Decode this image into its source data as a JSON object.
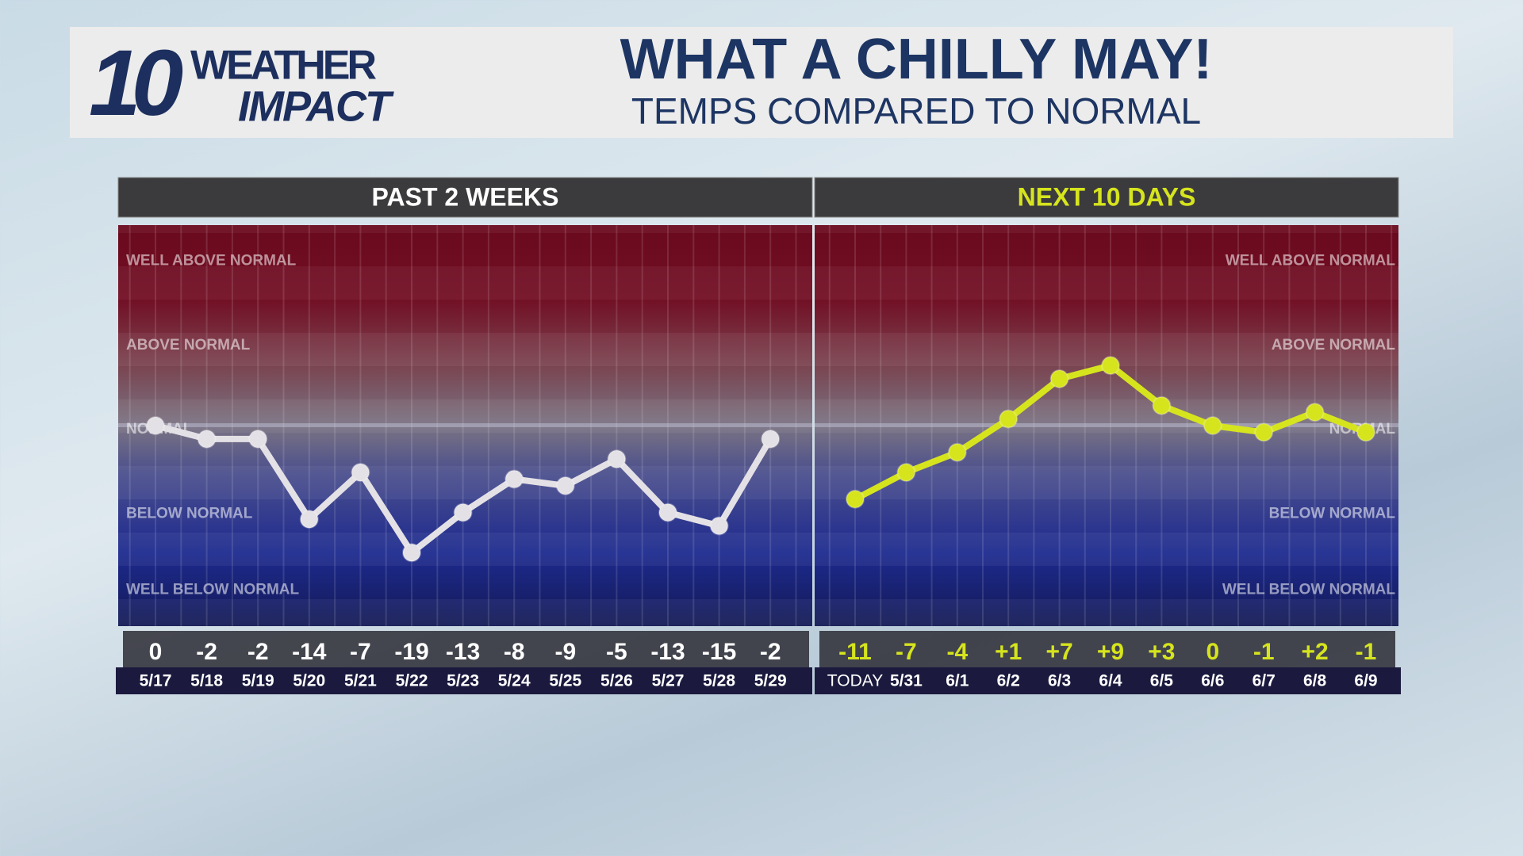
{
  "header": {
    "logo_number": "10",
    "logo_top": "WEATHER",
    "logo_bottom": "IMPACT",
    "title": "WHAT A CHILLY MAY!",
    "subtitle": "TEMPS COMPARED TO NORMAL"
  },
  "chart_data": [
    {
      "type": "line",
      "title": "PAST 2 WEEKS",
      "categories": [
        "5/17",
        "5/18",
        "5/19",
        "5/20",
        "5/21",
        "5/22",
        "5/23",
        "5/24",
        "5/25",
        "5/26",
        "5/27",
        "5/28",
        "5/29"
      ],
      "values": [
        0,
        -2,
        -2,
        -14,
        -7,
        -19,
        -13,
        -8,
        -9,
        -5,
        -13,
        -15,
        -2
      ],
      "color": "#e4e1e6",
      "ylim": [
        -30,
        30
      ],
      "bands": [
        "WELL ABOVE NORMAL",
        "ABOVE NORMAL",
        "NORMAL",
        "BELOW NORMAL",
        "WELL BELOW NORMAL"
      ],
      "band_side": "left"
    },
    {
      "type": "line",
      "title": "NEXT 10 DAYS",
      "categories": [
        "TODAY",
        "5/31",
        "6/1",
        "6/2",
        "6/3",
        "6/4",
        "6/5",
        "6/6",
        "6/7",
        "6/8",
        "6/9"
      ],
      "values": [
        -11,
        -7,
        -4,
        1,
        7,
        9,
        3,
        0,
        -1,
        2,
        -1
      ],
      "value_labels": [
        "-11",
        "-7",
        "-4",
        "+1",
        "+7",
        "+9",
        "+3",
        "0",
        "-1",
        "+2",
        "-1"
      ],
      "color": "#d6e41e",
      "ylim": [
        -30,
        30
      ],
      "bands": [
        "WELL ABOVE NORMAL",
        "ABOVE NORMAL",
        "NORMAL",
        "BELOW NORMAL",
        "WELL BELOW NORMAL"
      ],
      "band_side": "right"
    }
  ]
}
